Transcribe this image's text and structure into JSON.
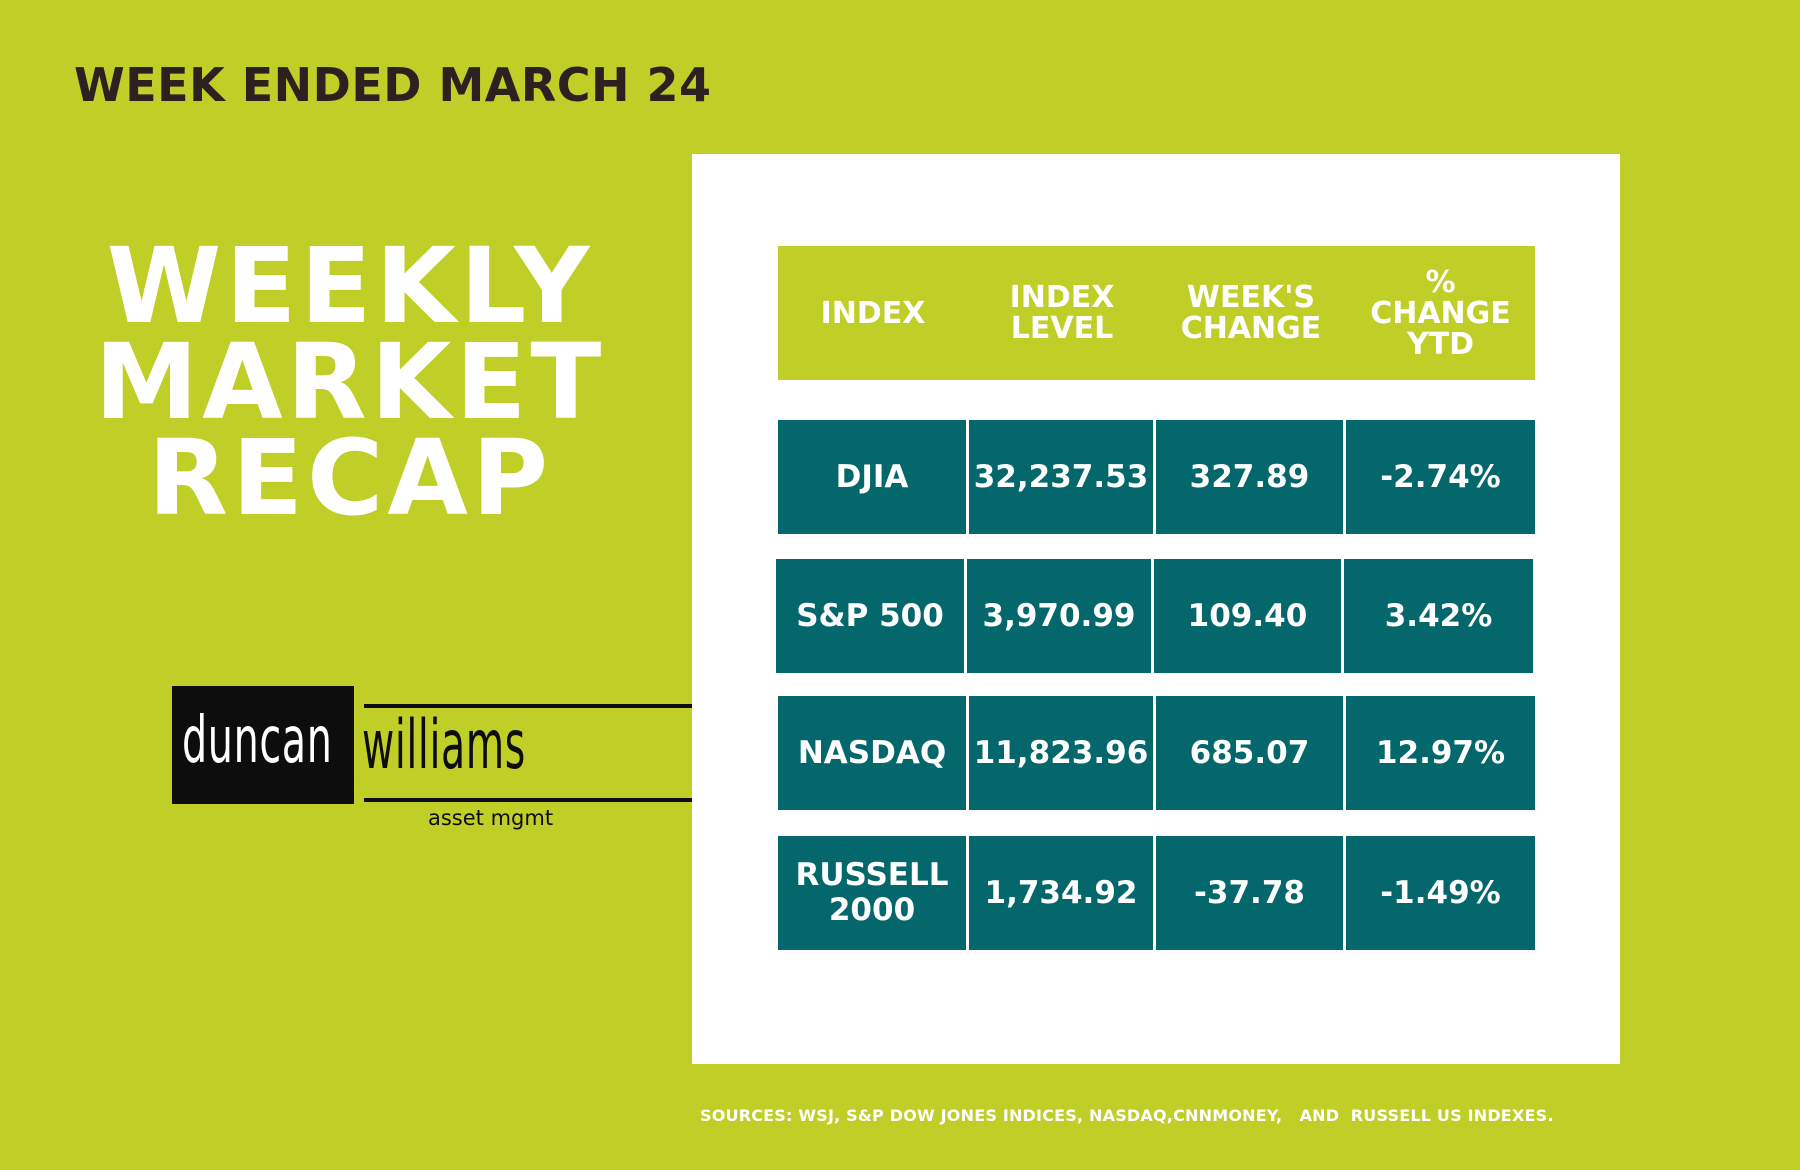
{
  "week_ended": "WEEK ENDED MARCH 24",
  "title": {
    "line1": "WEEKLY",
    "line2": "MARKET",
    "line3": "RECAP"
  },
  "logo": {
    "left_word": "duncan",
    "right_word": "williams",
    "subtitle": "asset mgmt"
  },
  "table": {
    "headers": [
      {
        "line1": "INDEX",
        "line2": "",
        "line3": ""
      },
      {
        "line1": "INDEX",
        "line2": "LEVEL",
        "line3": ""
      },
      {
        "line1": "WEEK'S",
        "line2": "CHANGE",
        "line3": ""
      },
      {
        "line1": "%",
        "line2": "CHANGE",
        "line3": "YTD"
      }
    ],
    "rows": [
      {
        "index_line1": "DJIA",
        "index_line2": "",
        "level": "32,237.53",
        "change": "327.89",
        "ytd": "-2.74%"
      },
      {
        "index_line1": "S&P 500",
        "index_line2": "",
        "level": "3,970.99",
        "change": "109.40",
        "ytd": "3.42%"
      },
      {
        "index_line1": "NASDAQ",
        "index_line2": "",
        "level": "11,823.96",
        "change": "685.07",
        "ytd": "12.97%"
      },
      {
        "index_line1": "RUSSELL",
        "index_line2": "2000",
        "level": "1,734.92",
        "change": "-37.78",
        "ytd": "-1.49%"
      }
    ]
  },
  "sources": "SOURCES: WSJ, S&P DOW JONES INDICES, NASDAQ,CNNMONEY,   AND  RUSSELL US INDEXES.",
  "colors": {
    "background": "#bfcf28",
    "cell": "#04676c",
    "card": "#ffffff",
    "heading_dark": "#2b2220"
  }
}
